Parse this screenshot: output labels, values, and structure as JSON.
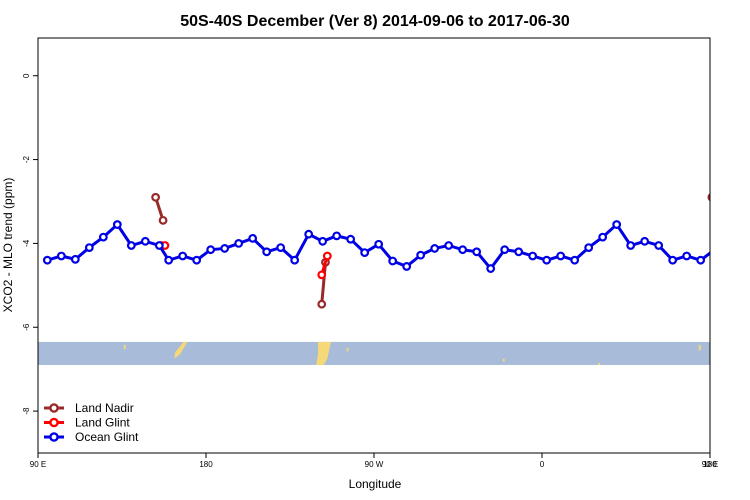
{
  "chart_data": {
    "type": "line",
    "title": "50S-40S December (Ver 8)   2014-09-06 to 2017-06-30",
    "xlabel": "Longitude",
    "ylabel": "XCO2 - MLO trend (ppm)",
    "xlim": [
      90,
      450
    ],
    "ylim": [
      -9.0,
      0.9
    ],
    "x_ticks": [
      {
        "value": 90,
        "label": "90 E"
      },
      {
        "value": 180,
        "label": "180"
      },
      {
        "value": 270,
        "label": "90 W"
      },
      {
        "value": 360,
        "label": "0"
      },
      {
        "value": 450,
        "label": "90 E"
      },
      {
        "value": 540,
        "label": "180"
      }
    ],
    "y_ticks": [
      0,
      -2,
      -4,
      -6,
      -8
    ],
    "x_axis_note": "longitude runs continuously from 90 E eastward through 180, 90 W, 0 to 90 E and 180",
    "series": [
      {
        "name": "Land Nadir",
        "color": "#992a2a",
        "segments": [
          [
            [
              153,
              -2.9
            ],
            [
              157,
              -3.45
            ]
          ],
          [
            [
              242,
              -5.45
            ],
            [
              244,
              -4.45
            ]
          ],
          [
            [
              451,
              -2.9
            ],
            [
              455,
              -3.45
            ]
          ]
        ]
      },
      {
        "name": "Land Glint",
        "color": "#ff0000",
        "segments": [
          [
            [
              156,
              -4.05
            ],
            [
              158,
              -4.05
            ]
          ],
          [
            [
              242,
              -4.75
            ],
            [
              245,
              -4.3
            ]
          ],
          [
            [
              455,
              -4.05
            ],
            [
              457,
              -4.05
            ]
          ]
        ]
      },
      {
        "name": "Ocean Glint",
        "color": "#0000e6",
        "x": [
          95,
          102.5,
          110,
          117.5,
          125,
          132.5,
          140,
          147.5,
          155,
          160,
          167.5,
          175,
          182.5,
          190,
          197.5,
          205,
          212.5,
          220,
          227.5,
          235,
          242.5,
          250,
          257.5,
          265,
          272.5,
          280,
          287.5,
          295,
          302.5,
          310,
          317.5,
          325,
          332.5,
          340,
          347.5,
          355,
          362.5,
          370,
          377.5,
          385,
          392.5,
          400,
          407.5,
          415,
          422.5,
          430,
          437.5,
          445,
          452.5,
          460
        ],
        "y": [
          -4.4,
          -4.3,
          -4.38,
          -4.1,
          -3.85,
          -3.55,
          -4.05,
          -3.95,
          -4.05,
          -4.4,
          -4.3,
          -4.4,
          -4.15,
          -4.12,
          -4.0,
          -3.88,
          -4.2,
          -4.1,
          -4.4,
          -3.78,
          -3.95,
          -3.82,
          -3.9,
          -4.22,
          -4.02,
          -4.42,
          -4.55,
          -4.28,
          -4.12,
          -4.05,
          -4.15,
          -4.2,
          -4.6,
          -4.15,
          -4.2,
          -4.3,
          -4.4,
          -4.3,
          -4.4,
          -4.1,
          -3.85,
          -3.55,
          -4.05,
          -3.95,
          -4.05,
          -4.4,
          -4.3,
          -4.4,
          -4.15,
          -4.12
        ]
      }
    ],
    "legend": {
      "position": "bottom-left",
      "entries": [
        "Land Nadir",
        "Land Glint",
        "Ocean Glint"
      ]
    },
    "map_strip": {
      "ocean_color": "#a8bcd9",
      "land_color": "#f5d878",
      "ylim": [
        -6.9,
        -6.35
      ]
    }
  }
}
